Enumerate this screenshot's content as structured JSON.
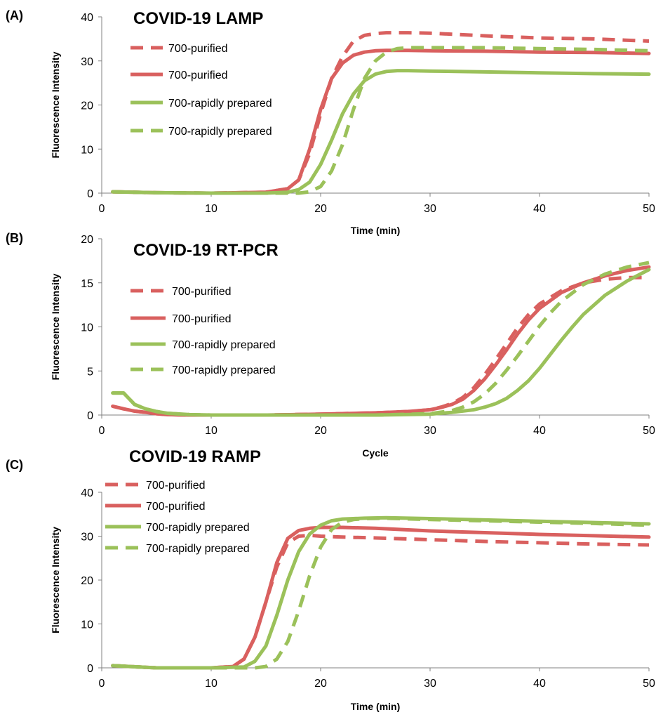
{
  "colors": {
    "purified": "#d9605f",
    "rapid": "#9bc15a",
    "axis": "#808080"
  },
  "chart_data": [
    {
      "type": "line",
      "panel_label": "(A)",
      "title": "COVID-19 LAMP",
      "xlabel": "Time (min)",
      "ylabel": "Fluorescence Intensity",
      "xlim": [
        0,
        50
      ],
      "ylim": [
        0,
        40
      ],
      "xticks": [
        0,
        10,
        20,
        30,
        40,
        50
      ],
      "yticks": [
        0,
        10,
        20,
        30,
        40
      ],
      "grid": false,
      "legend": "top-left",
      "series": [
        {
          "name": "700-purified",
          "color_key": "purified",
          "dashed": true,
          "x": [
            1,
            5,
            10,
            15,
            17,
            18,
            19,
            20,
            21,
            22,
            23,
            24,
            25,
            26,
            28,
            30,
            35,
            40,
            45,
            50
          ],
          "y": [
            0.3,
            0.1,
            0,
            0.2,
            1,
            3,
            9,
            18,
            26,
            31,
            34.5,
            35.8,
            36.2,
            36.4,
            36.4,
            36.3,
            35.7,
            35.2,
            35,
            34.5
          ]
        },
        {
          "name": "700-purified",
          "color_key": "purified",
          "dashed": false,
          "x": [
            1,
            5,
            10,
            15,
            17,
            18,
            19,
            20,
            21,
            22,
            23,
            24,
            25,
            26,
            28,
            30,
            35,
            40,
            45,
            50
          ],
          "y": [
            0.3,
            0.1,
            0,
            0.2,
            1,
            3,
            10,
            19,
            26,
            29.5,
            31.3,
            32,
            32.3,
            32.4,
            32.4,
            32.3,
            32.2,
            32,
            31.9,
            31.7
          ]
        },
        {
          "name": "700-rapidly prepared",
          "color_key": "rapid",
          "dashed": false,
          "x": [
            1,
            5,
            10,
            15,
            17,
            18,
            19,
            20,
            21,
            22,
            23,
            24,
            25,
            26,
            27,
            28,
            30,
            35,
            40,
            45,
            50
          ],
          "y": [
            0.3,
            0.1,
            0,
            0,
            0.2,
            0.8,
            2.5,
            6.5,
            12,
            18,
            22.5,
            25.5,
            27,
            27.6,
            27.8,
            27.8,
            27.7,
            27.5,
            27.3,
            27.1,
            27
          ]
        },
        {
          "name": "700-rapidly prepared",
          "color_key": "rapid",
          "dashed": true,
          "x": [
            1,
            5,
            10,
            15,
            18,
            19,
            20,
            21,
            22,
            23,
            24,
            25,
            26,
            27,
            28,
            30,
            35,
            40,
            45,
            50
          ],
          "y": [
            0.3,
            0.1,
            0,
            0,
            0,
            0.3,
            1.5,
            5,
            11,
            19,
            26,
            30,
            32,
            32.8,
            33,
            33,
            33,
            32.8,
            32.6,
            32.3
          ]
        }
      ]
    },
    {
      "type": "line",
      "panel_label": "(B)",
      "title": "COVID-19 RT-PCR",
      "xlabel": "Cycle",
      "ylabel": "Fluorescence Intensity",
      "xlim": [
        0,
        50
      ],
      "ylim": [
        0,
        20
      ],
      "xticks": [
        0,
        10,
        20,
        30,
        40,
        50
      ],
      "yticks": [
        0,
        5,
        10,
        15,
        20
      ],
      "grid": false,
      "legend": "top-left",
      "series": [
        {
          "name": "700-purified",
          "color_key": "purified",
          "dashed": true,
          "x": [
            1,
            2,
            3,
            4,
            5,
            6,
            8,
            10,
            15,
            20,
            25,
            28,
            30,
            31,
            32,
            33,
            34,
            35,
            36,
            37,
            38,
            39,
            40,
            42,
            44,
            46,
            48,
            50
          ],
          "y": [
            1,
            0.7,
            0.45,
            0.3,
            0.15,
            0.05,
            0,
            0,
            0,
            0.1,
            0.25,
            0.4,
            0.6,
            0.9,
            1.3,
            2,
            3.1,
            4.6,
            6.3,
            8.1,
            9.9,
            11.4,
            12.6,
            14.1,
            15,
            15.4,
            15.6,
            15.6
          ]
        },
        {
          "name": "700-purified",
          "color_key": "purified",
          "dashed": false,
          "x": [
            1,
            2,
            3,
            4,
            5,
            6,
            8,
            10,
            15,
            20,
            25,
            28,
            30,
            31,
            32,
            33,
            34,
            35,
            36,
            37,
            38,
            39,
            40,
            42,
            44,
            46,
            48,
            50
          ],
          "y": [
            1,
            0.7,
            0.45,
            0.3,
            0.15,
            0.05,
            0,
            0,
            0,
            0.1,
            0.25,
            0.4,
            0.6,
            0.85,
            1.2,
            1.8,
            2.8,
            4.1,
            5.7,
            7.4,
            9.2,
            10.8,
            12.1,
            13.9,
            15,
            15.8,
            16.4,
            16.8
          ]
        },
        {
          "name": "700-rapidly prepared",
          "color_key": "rapid",
          "dashed": false,
          "x": [
            1,
            2,
            3,
            4,
            5,
            6,
            8,
            10,
            15,
            20,
            25,
            30,
            32,
            34,
            35,
            36,
            37,
            38,
            39,
            40,
            41,
            42,
            43,
            44,
            46,
            48,
            50
          ],
          "y": [
            2.5,
            2.5,
            1.2,
            0.7,
            0.4,
            0.2,
            0.05,
            0,
            0,
            0,
            0,
            0.1,
            0.3,
            0.6,
            0.9,
            1.3,
            1.9,
            2.8,
            3.9,
            5.3,
            6.9,
            8.5,
            10,
            11.4,
            13.6,
            15.2,
            16.5
          ]
        },
        {
          "name": "700-rapidly prepared",
          "color_key": "rapid",
          "dashed": true,
          "x": [
            1,
            2,
            3,
            4,
            5,
            6,
            8,
            10,
            15,
            20,
            25,
            30,
            32,
            33,
            34,
            35,
            36,
            37,
            38,
            39,
            40,
            41,
            42,
            44,
            46,
            48,
            50
          ],
          "y": [
            2.5,
            2.5,
            1.2,
            0.7,
            0.4,
            0.2,
            0.05,
            0,
            0,
            0,
            0,
            0.15,
            0.5,
            0.9,
            1.5,
            2.4,
            3.6,
            5.1,
            6.7,
            8.4,
            10.1,
            11.6,
            12.9,
            14.8,
            16,
            16.8,
            17.3
          ]
        }
      ]
    },
    {
      "type": "line",
      "panel_label": "(C)",
      "title": "COVID-19 RAMP",
      "xlabel": "Time (min)",
      "ylabel": "Fluorescence Intensity",
      "xlim": [
        0,
        50
      ],
      "ylim": [
        0,
        40
      ],
      "xticks": [
        0,
        10,
        20,
        30,
        40,
        50
      ],
      "yticks": [
        0,
        10,
        20,
        30,
        40
      ],
      "grid": false,
      "legend": "top-left",
      "series": [
        {
          "name": "700-purified",
          "color_key": "purified",
          "dashed": true,
          "x": [
            1,
            5,
            10,
            12,
            13,
            14,
            15,
            16,
            17,
            18,
            19,
            20,
            22,
            25,
            30,
            35,
            40,
            45,
            50
          ],
          "y": [
            0.5,
            0,
            0,
            0.3,
            2,
            7,
            15,
            23,
            28.5,
            30,
            30.2,
            30,
            29.8,
            29.6,
            29.2,
            28.8,
            28.5,
            28.2,
            28
          ]
        },
        {
          "name": "700-purified",
          "color_key": "purified",
          "dashed": false,
          "x": [
            1,
            5,
            10,
            12,
            13,
            14,
            15,
            16,
            17,
            18,
            19,
            20,
            22,
            25,
            30,
            35,
            40,
            45,
            50
          ],
          "y": [
            0.5,
            0,
            0,
            0.3,
            2,
            7,
            15,
            24,
            29.5,
            31.3,
            31.8,
            32,
            32,
            31.8,
            31.2,
            30.8,
            30.4,
            30.1,
            29.8
          ]
        },
        {
          "name": "700-rapidly prepared",
          "color_key": "rapid",
          "dashed": false,
          "x": [
            1,
            5,
            10,
            13,
            14,
            15,
            16,
            17,
            18,
            19,
            20,
            21,
            22,
            24,
            26,
            30,
            35,
            40,
            45,
            50
          ],
          "y": [
            0.5,
            0,
            0,
            0.2,
            1.5,
            5,
            12,
            20,
            26.5,
            30.5,
            32.5,
            33.5,
            33.9,
            34.1,
            34.2,
            34,
            33.7,
            33.4,
            33.1,
            32.8
          ]
        },
        {
          "name": "700-rapidly prepared",
          "color_key": "rapid",
          "dashed": true,
          "x": [
            1,
            5,
            10,
            14,
            15,
            16,
            17,
            18,
            19,
            20,
            21,
            22,
            23,
            24,
            26,
            30,
            35,
            40,
            45,
            50
          ],
          "y": [
            0.5,
            0,
            0,
            0,
            0.3,
            2,
            6,
            13,
            21,
            27.5,
            31.5,
            33.2,
            33.8,
            34,
            34.1,
            33.8,
            33.5,
            33.2,
            32.9,
            32.5
          ]
        }
      ]
    }
  ]
}
